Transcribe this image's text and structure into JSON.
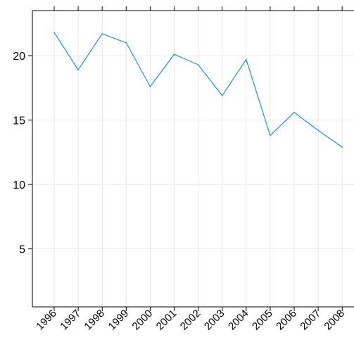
{
  "chart_data": {
    "type": "line",
    "title": "",
    "xlabel": "",
    "ylabel": "",
    "x": [
      "1996",
      "1997",
      "1998",
      "1999",
      "2000",
      "2001",
      "2002",
      "2003",
      "2004",
      "2005",
      "2006",
      "2007",
      "2008"
    ],
    "series": [
      {
        "values": [
          21.8,
          18.9,
          21.7,
          21.0,
          17.6,
          20.1,
          19.3,
          16.9,
          19.7,
          13.8,
          15.6,
          14.2,
          12.9
        ],
        "color": "#1f8fe5"
      }
    ],
    "ylim": [
      0.5,
      23.5
    ],
    "yticks": [
      5,
      10,
      15,
      20
    ],
    "ytick_labels": [
      "5",
      "10",
      "15",
      "20"
    ],
    "grid": true,
    "grid_color": "#e6e6e6",
    "xtick_rotation": -45
  }
}
